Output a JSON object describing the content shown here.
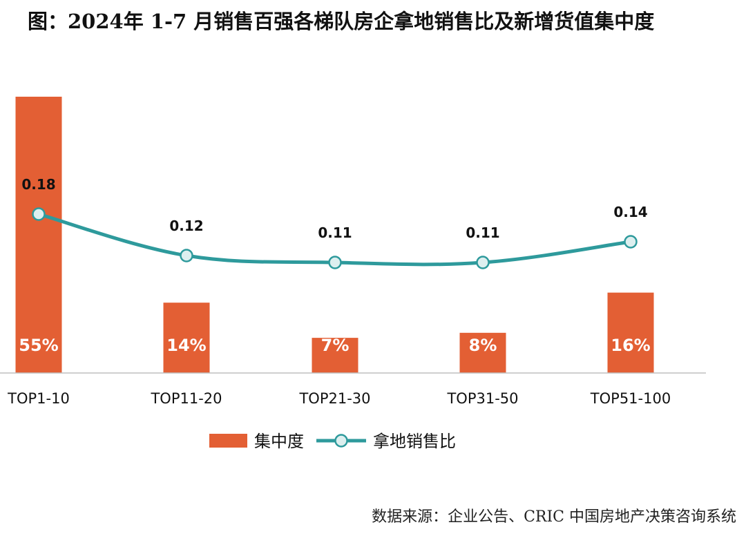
{
  "title": "图：2024年 1-7 月销售百强各梯队房企拿地销售比及新增货值集中度",
  "source": "数据来源：企业公告、CRIC 中国房地产决策咨询系统",
  "colors": {
    "bar": "#E35F34",
    "line": "#2E9A9C",
    "marker_fill": "#DDEFEF",
    "axis": "#BFBFBF"
  },
  "chart_data": {
    "type": "bar",
    "categories": [
      "TOP1-10",
      "TOP11-20",
      "TOP21-30",
      "TOP31-50",
      "TOP51-100"
    ],
    "series": [
      {
        "name": "集中度",
        "type": "bar",
        "values": [
          55,
          14,
          7,
          8,
          16
        ],
        "labels": [
          "55%",
          "14%",
          "7%",
          "8%",
          "16%"
        ]
      },
      {
        "name": "拿地销售比",
        "type": "line",
        "values": [
          0.18,
          0.12,
          0.11,
          0.11,
          0.14
        ],
        "labels": [
          "0.18",
          "0.12",
          "0.11",
          "0.11",
          "0.14"
        ]
      }
    ],
    "bar_ylim": [
      0,
      55
    ],
    "line_ylim": [
      -0.05,
      0.35
    ],
    "grid": false,
    "legend_position": "bottom"
  }
}
